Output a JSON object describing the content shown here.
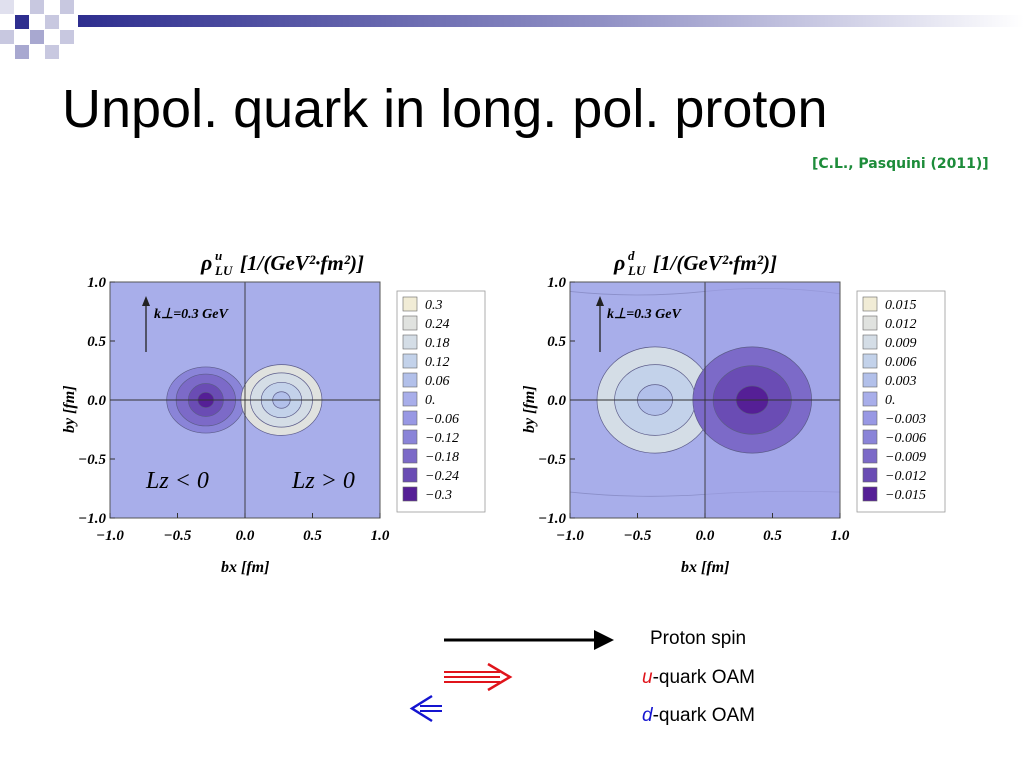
{
  "slide": {
    "title": "Unpol. quark in long. pol. proton",
    "citation": "[C.L., Pasquini (2011)]"
  },
  "colors": {
    "title_bar": "#2e2e8f",
    "deco_light": "#a8a8d0",
    "citation": "#1d8c3a",
    "u_arrow": "#e0141b",
    "d_arrow": "#1414d0",
    "spin_arrow": "#000000"
  },
  "chart_data": [
    {
      "type": "heatmap",
      "title_symbol": "ρ",
      "title_sub": "LU",
      "title_sup": "u",
      "title_units": "[1/(GeV²·fm²)]",
      "annotation": "k⊥=0.3 GeV",
      "region_left": "Lz < 0",
      "region_right": "Lz > 0",
      "xlabel": "bx [fm]",
      "ylabel": "by [fm]",
      "xlim": [
        -1.0,
        1.0
      ],
      "ylim": [
        -1.0,
        1.0
      ],
      "x_ticks": [
        "−1.0",
        "−0.5",
        "0.0",
        "0.5",
        "1.0"
      ],
      "y_ticks": [
        "1.0",
        "0.5",
        "0.0",
        "−0.5",
        "−1.0"
      ],
      "legend_levels": [
        "0.3",
        "0.24",
        "0.18",
        "0.12",
        "0.06",
        "0.",
        "−0.06",
        "−0.12",
        "−0.18",
        "−0.24",
        "−0.3"
      ],
      "background_level": "0.",
      "features": [
        {
          "sign": "negative",
          "center": [
            -0.29,
            0.0
          ],
          "peak": "−0.3",
          "radii_x": [
            0.29,
            0.22,
            0.13,
            0.06
          ],
          "radii_y": [
            0.28,
            0.22,
            0.14,
            0.065
          ]
        },
        {
          "sign": "positive",
          "center": [
            0.27,
            0.0
          ],
          "peak": "0.3",
          "radii_x": [
            0.3,
            0.23,
            0.15,
            0.065
          ],
          "radii_y": [
            0.3,
            0.23,
            0.15,
            0.07
          ]
        }
      ]
    },
    {
      "type": "heatmap",
      "title_symbol": "ρ",
      "title_sub": "LU",
      "title_sup": "d",
      "title_units": "[1/(GeV²·fm²)]",
      "annotation": "k⊥=0.3 GeV",
      "xlabel": "bx [fm]",
      "ylabel": "by [fm]",
      "xlim": [
        -1.0,
        1.0
      ],
      "ylim": [
        -1.0,
        1.0
      ],
      "x_ticks": [
        "−1.0",
        "−0.5",
        "0.0",
        "0.5",
        "1.0"
      ],
      "y_ticks": [
        "1.0",
        "0.5",
        "0.0",
        "−0.5",
        "−1.0"
      ],
      "legend_levels": [
        "0.015",
        "0.012",
        "0.009",
        "0.006",
        "0.003",
        "0.",
        "−0.003",
        "−0.006",
        "−0.009",
        "−0.012",
        "−0.015"
      ],
      "background_level": "0.",
      "features": [
        {
          "sign": "positive",
          "center": [
            -0.37,
            0.0
          ],
          "peak": "0.012",
          "radii_x": [
            0.43,
            0.3,
            0.13
          ],
          "radii_y": [
            0.45,
            0.3,
            0.13
          ]
        },
        {
          "sign": "negative",
          "center": [
            0.35,
            0.0
          ],
          "peak": "−0.012",
          "radii_x": [
            0.44,
            0.29,
            0.12
          ],
          "radii_y": [
            0.45,
            0.29,
            0.12
          ]
        }
      ]
    }
  ],
  "key": [
    {
      "style": "single",
      "label": "Proton spin"
    },
    {
      "style": "double",
      "letter": "u",
      "label": "-quark OAM"
    },
    {
      "style": "double",
      "letter": "d",
      "label": "-quark OAM"
    }
  ]
}
